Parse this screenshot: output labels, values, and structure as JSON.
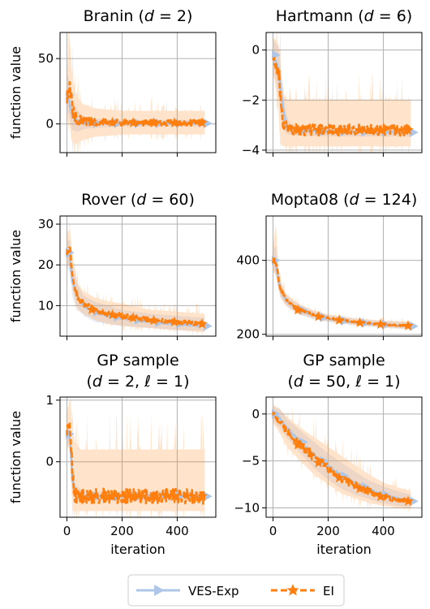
{
  "legend": {
    "placement": "bottom-center",
    "entries": [
      {
        "label": "VES-Exp",
        "color": "#aec7e8",
        "marker": "triangle-right",
        "line": "solid"
      },
      {
        "label": "EI",
        "color": "#ff7f0e",
        "marker": "star",
        "line": "dashed"
      }
    ]
  },
  "shared": {
    "xlabel": "iteration",
    "ylabel": "function value",
    "xlim": [
      -25,
      540
    ],
    "xticks": [
      0,
      200,
      400
    ],
    "grid": true
  },
  "chart_data": [
    {
      "type": "line",
      "title": "Branin (d = 2)",
      "title_parts": [
        "Branin (",
        "d",
        " = 2)"
      ],
      "ylim": [
        -22,
        70
      ],
      "yticks": [
        0,
        50
      ],
      "ytick_labels": [
        "0",
        "50"
      ],
      "series": [
        {
          "name": "VES-Exp",
          "x": [
            0,
            5,
            10,
            20,
            40,
            60,
            100,
            200,
            300,
            400,
            500
          ],
          "y": [
            22,
            20,
            15,
            6,
            2,
            1,
            0.6,
            0.5,
            0.45,
            0.4,
            0.4
          ],
          "lower": [
            8,
            8,
            4,
            -5,
            -6,
            -4,
            -3,
            -2,
            -2,
            -2,
            -2
          ],
          "upper": [
            35,
            38,
            30,
            18,
            10,
            6,
            4,
            3,
            3,
            3,
            3
          ]
        },
        {
          "name": "EI",
          "x": [
            0,
            5,
            10,
            15,
            20,
            30,
            40,
            60,
            100,
            200,
            300,
            400,
            500
          ],
          "y": [
            18,
            25,
            32,
            20,
            10,
            5,
            3,
            2,
            1.5,
            1,
            0.8,
            0.8,
            0.8
          ],
          "lower": [
            0,
            5,
            0,
            -10,
            -15,
            -15,
            -15,
            -12,
            -10,
            -8,
            -8,
            -8,
            -8
          ],
          "upper": [
            40,
            55,
            65,
            50,
            35,
            25,
            20,
            15,
            12,
            10,
            10,
            10,
            10
          ]
        }
      ]
    },
    {
      "type": "line",
      "title": "Hartmann (d = 6)",
      "title_parts": [
        "Hartmann (",
        "d",
        " = 6)"
      ],
      "ylim": [
        -4.1,
        0.7
      ],
      "yticks": [
        0,
        -2,
        -4
      ],
      "ytick_labels": [
        "0",
        "−2",
        "−4"
      ],
      "series": [
        {
          "name": "VES-Exp",
          "x": [
            0,
            10,
            20,
            30,
            40,
            50,
            60,
            80,
            100,
            200,
            300,
            400,
            500
          ],
          "y": [
            -0.2,
            -0.4,
            -0.8,
            -1.7,
            -2.6,
            -3.0,
            -3.15,
            -3.2,
            -3.22,
            -3.25,
            -3.27,
            -3.28,
            -3.29
          ],
          "lower": [
            -0.9,
            -1.2,
            -1.8,
            -2.6,
            -3.2,
            -3.35,
            -3.38,
            -3.4,
            -3.42,
            -3.44,
            -3.45,
            -3.45,
            -3.45
          ],
          "upper": [
            0.4,
            0.3,
            0.1,
            -0.8,
            -2.0,
            -2.6,
            -2.9,
            -3.0,
            -3.05,
            -3.08,
            -3.1,
            -3.1,
            -3.1
          ]
        },
        {
          "name": "EI",
          "x": [
            0,
            10,
            20,
            25,
            30,
            40,
            50,
            60,
            80,
            100,
            200,
            300,
            400,
            500
          ],
          "y": [
            -0.3,
            -0.6,
            -0.8,
            -1.5,
            -2.5,
            -3.0,
            -3.1,
            -3.15,
            -3.15,
            -3.2,
            -3.2,
            -3.2,
            -3.2,
            -3.2
          ],
          "lower": [
            -1.0,
            -1.5,
            -2.5,
            -3.5,
            -3.8,
            -3.85,
            -3.85,
            -3.85,
            -3.85,
            -3.85,
            -3.85,
            -3.85,
            -3.85,
            -3.85
          ],
          "upper": [
            0.5,
            0.4,
            0.2,
            0.0,
            -1.0,
            -1.8,
            -2.0,
            -2.0,
            -2.0,
            -2.0,
            -2.0,
            -2.0,
            -2.0,
            -2.0
          ]
        }
      ]
    },
    {
      "type": "line",
      "title": "Rover (d = 60)",
      "title_parts": [
        "Rover (",
        "d",
        " = 60)"
      ],
      "ylim": [
        2.5,
        32
      ],
      "yticks": [
        10,
        20,
        30
      ],
      "ytick_labels": [
        "10",
        "20",
        "30"
      ],
      "series": [
        {
          "name": "VES-Exp",
          "x": [
            0,
            10,
            20,
            40,
            60,
            100,
            150,
            200,
            300,
            400,
            500
          ],
          "y": [
            23,
            22,
            16,
            12,
            10,
            8.5,
            7.5,
            7,
            6,
            5.5,
            5
          ],
          "lower": [
            20,
            18,
            12,
            9,
            7.5,
            6,
            5.5,
            5,
            4.5,
            4,
            3.8
          ],
          "upper": [
            26,
            26,
            20,
            15,
            12.5,
            11,
            10,
            9,
            8,
            7.5,
            7
          ]
        },
        {
          "name": "EI",
          "x": [
            0,
            10,
            20,
            30,
            40,
            60,
            100,
            150,
            200,
            300,
            400,
            500
          ],
          "y": [
            23,
            24,
            18,
            14,
            12,
            10.5,
            9,
            8,
            7.5,
            6.5,
            6,
            5.5
          ],
          "lower": [
            20,
            20,
            14,
            11,
            9,
            8,
            6.5,
            5.5,
            5,
            4.5,
            4,
            3.5
          ],
          "upper": [
            27,
            29,
            23,
            18,
            15.5,
            13.5,
            12,
            11,
            10.5,
            9,
            8.5,
            8
          ]
        }
      ]
    },
    {
      "type": "line",
      "title": "Mopta08 (d = 124)",
      "title_parts": [
        "Mopta08 (",
        "d",
        " = 124)"
      ],
      "ylim": [
        195,
        520
      ],
      "yticks": [
        200,
        400
      ],
      "ytick_labels": [
        "200",
        "400"
      ],
      "series": [
        {
          "name": "VES-Exp",
          "x": [
            0,
            10,
            20,
            30,
            50,
            75,
            100,
            150,
            200,
            300,
            400,
            500
          ],
          "y": [
            400,
            395,
            345,
            315,
            290,
            275,
            265,
            250,
            242,
            232,
            226,
            222
          ],
          "lower": [
            375,
            360,
            320,
            295,
            275,
            262,
            252,
            240,
            233,
            224,
            218,
            213
          ],
          "upper": [
            430,
            440,
            370,
            335,
            305,
            290,
            278,
            262,
            252,
            242,
            236,
            233
          ]
        },
        {
          "name": "EI",
          "x": [
            0,
            10,
            20,
            30,
            50,
            75,
            100,
            150,
            200,
            300,
            400,
            500
          ],
          "y": [
            400,
            405,
            348,
            318,
            292,
            277,
            266,
            252,
            244,
            233,
            227,
            223
          ],
          "lower": [
            370,
            360,
            322,
            297,
            277,
            264,
            254,
            242,
            235,
            225,
            219,
            214
          ],
          "upper": [
            440,
            500,
            380,
            340,
            308,
            292,
            280,
            264,
            254,
            243,
            237,
            234
          ]
        }
      ]
    },
    {
      "type": "line",
      "title": "GP sample (d = 2, ℓ = 1)",
      "title_parts": [
        "GP sample",
        "(",
        "d",
        " = 2, ",
        "ℓ",
        " = 1)"
      ],
      "ylim": [
        -0.9,
        1.05
      ],
      "yticks": [
        0,
        1
      ],
      "ytick_labels": [
        "0",
        "1"
      ],
      "series": [
        {
          "name": "VES-Exp",
          "x": [
            0,
            5,
            10,
            15,
            20,
            30,
            50,
            100,
            200,
            300,
            400,
            500
          ],
          "y": [
            0.45,
            0.45,
            0.4,
            0.1,
            -0.3,
            -0.5,
            -0.55,
            -0.56,
            -0.56,
            -0.56,
            -0.56,
            -0.56
          ],
          "lower": [
            0.3,
            0.3,
            0.15,
            -0.2,
            -0.5,
            -0.62,
            -0.64,
            -0.64,
            -0.64,
            -0.64,
            -0.64,
            -0.64
          ],
          "upper": [
            0.6,
            0.6,
            0.6,
            0.4,
            0.0,
            -0.35,
            -0.45,
            -0.48,
            -0.48,
            -0.48,
            -0.48,
            -0.48
          ]
        },
        {
          "name": "EI",
          "x": [
            0,
            5,
            10,
            15,
            20,
            25,
            30,
            50,
            100,
            200,
            300,
            400,
            500
          ],
          "y": [
            0.5,
            0.55,
            0.6,
            0.3,
            -0.2,
            -0.45,
            -0.55,
            -0.56,
            -0.56,
            -0.56,
            -0.56,
            -0.56,
            -0.56
          ],
          "lower": [
            0.2,
            0.25,
            0.2,
            -0.3,
            -0.8,
            -0.8,
            -0.8,
            -0.8,
            -0.8,
            -0.8,
            -0.8,
            -0.8,
            -0.8
          ],
          "upper": [
            0.8,
            0.9,
            1.0,
            0.9,
            0.6,
            0.4,
            0.3,
            0.2,
            0.2,
            0.2,
            0.2,
            0.2,
            0.2
          ]
        }
      ]
    },
    {
      "type": "line",
      "title": "GP sample (d = 50, ℓ = 1)",
      "title_parts": [
        "GP sample",
        "(",
        "d",
        " = 50, ",
        "ℓ",
        " = 1)"
      ],
      "ylim": [
        -11,
        1.8
      ],
      "yticks": [
        0,
        -5,
        -10
      ],
      "ytick_labels": [
        "0",
        "−5",
        "−10"
      ],
      "series": [
        {
          "name": "VES-Exp",
          "x": [
            0,
            25,
            50,
            100,
            150,
            200,
            250,
            300,
            350,
            400,
            450,
            500
          ],
          "y": [
            0,
            -0.5,
            -1.5,
            -3.0,
            -4.4,
            -5.6,
            -6.6,
            -7.4,
            -8.1,
            -8.6,
            -9.0,
            -9.3
          ],
          "lower": [
            -0.8,
            -1.5,
            -2.5,
            -4.2,
            -5.8,
            -7.0,
            -8.0,
            -8.6,
            -9.1,
            -9.5,
            -9.8,
            -10.0
          ],
          "upper": [
            0.8,
            0.5,
            -0.5,
            -1.8,
            -3.0,
            -4.2,
            -5.2,
            -6.2,
            -7.1,
            -7.7,
            -8.2,
            -8.6
          ]
        },
        {
          "name": "EI",
          "x": [
            0,
            25,
            50,
            100,
            150,
            200,
            250,
            300,
            350,
            400,
            450,
            500
          ],
          "y": [
            0,
            -0.8,
            -1.8,
            -3.3,
            -4.6,
            -5.8,
            -6.8,
            -7.6,
            -8.3,
            -8.8,
            -9.1,
            -9.3
          ],
          "lower": [
            -1.0,
            -2.0,
            -3.5,
            -5.0,
            -6.5,
            -7.5,
            -8.5,
            -9.0,
            -9.5,
            -9.8,
            -10.0,
            -10.1
          ],
          "upper": [
            1.0,
            0.5,
            -0.3,
            -1.5,
            -2.5,
            -3.5,
            -4.5,
            -5.5,
            -6.5,
            -7.3,
            -7.8,
            -8.2
          ]
        }
      ]
    }
  ]
}
